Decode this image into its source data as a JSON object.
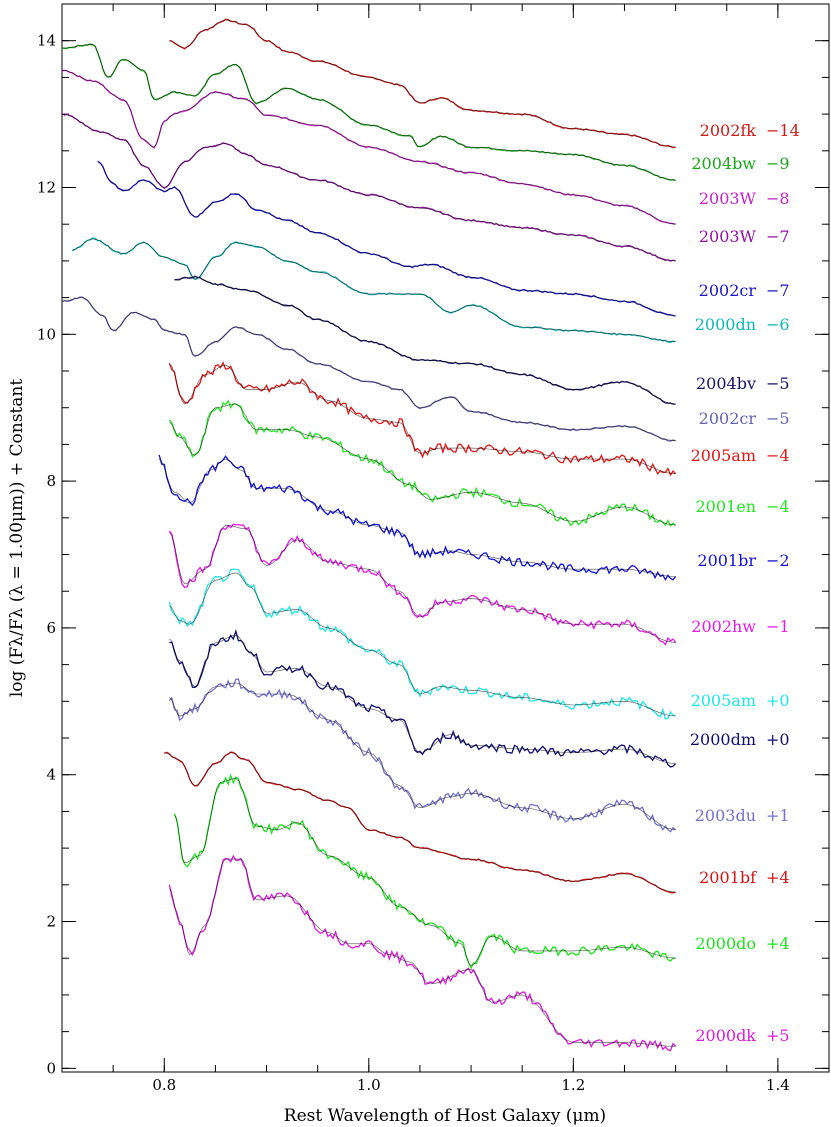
{
  "chart_data": {
    "type": "line",
    "title": "",
    "xlabel": "Rest Wavelength of Host Galaxy (μm)",
    "ylabel": "log (Fλ/Fλ (λ = 1.00μm)) + Constant",
    "xlim": [
      0.7,
      1.45
    ],
    "ylim": [
      -0.05,
      14.5
    ],
    "xticks": [
      0.8,
      1.0,
      1.2,
      1.4
    ],
    "xtick_labels": [
      "0.8",
      "1.0",
      "1.2",
      "1.4"
    ],
    "yticks": [
      0,
      2,
      4,
      6,
      8,
      10,
      12,
      14
    ],
    "ytick_labels": [
      "0",
      "2",
      "4",
      "6",
      "8",
      "10",
      "12",
      "14"
    ],
    "grid": false,
    "legend": "labels at right end of each spectrum",
    "series": [
      {
        "name": "2002fk",
        "epoch": "−14",
        "color": "#d11919",
        "x": [
          0.805,
          0.82,
          0.84,
          0.86,
          0.88,
          0.9,
          0.92,
          0.95,
          1.0,
          1.03,
          1.05,
          1.07,
          1.1,
          1.15,
          1.2,
          1.25,
          1.3
        ],
        "y": [
          14.0,
          13.9,
          14.15,
          14.28,
          14.22,
          14.0,
          13.85,
          13.72,
          13.5,
          13.4,
          13.15,
          13.22,
          13.05,
          13.0,
          12.8,
          12.72,
          12.55
        ]
      },
      {
        "name": "2004bw",
        "epoch": "−9",
        "color": "#1aa61a",
        "x": [
          0.7,
          0.73,
          0.745,
          0.76,
          0.78,
          0.79,
          0.81,
          0.83,
          0.85,
          0.87,
          0.89,
          0.92,
          0.95,
          1.0,
          1.04,
          1.05,
          1.07,
          1.1,
          1.15,
          1.2,
          1.25,
          1.3
        ],
        "y": [
          13.9,
          13.95,
          13.5,
          13.75,
          13.6,
          13.2,
          13.3,
          13.25,
          13.55,
          13.68,
          13.15,
          13.35,
          13.2,
          12.85,
          12.7,
          12.55,
          12.7,
          12.55,
          12.5,
          12.45,
          12.3,
          12.1
        ]
      },
      {
        "name": "2003W",
        "epoch": "−8",
        "color": "#c424c4",
        "x": [
          0.7,
          0.73,
          0.76,
          0.78,
          0.79,
          0.8,
          0.81,
          0.82,
          0.85,
          0.88,
          0.9,
          0.95,
          1.0,
          1.05,
          1.1,
          1.15,
          1.2,
          1.25,
          1.3
        ],
        "y": [
          13.6,
          13.45,
          13.2,
          12.65,
          12.55,
          12.9,
          13.0,
          13.05,
          13.3,
          13.2,
          12.98,
          12.85,
          12.55,
          12.35,
          12.2,
          12.05,
          11.9,
          11.75,
          11.5
        ]
      },
      {
        "name": "2003W",
        "epoch": "−7",
        "color": "#9014a0",
        "x": [
          0.7,
          0.74,
          0.76,
          0.78,
          0.8,
          0.82,
          0.84,
          0.86,
          0.88,
          0.9,
          0.95,
          1.0,
          1.05,
          1.1,
          1.15,
          1.2,
          1.25,
          1.3
        ],
        "y": [
          13.0,
          12.75,
          12.65,
          12.3,
          12.0,
          12.35,
          12.55,
          12.6,
          12.45,
          12.3,
          12.1,
          11.9,
          11.72,
          11.55,
          11.45,
          11.35,
          11.2,
          11.0
        ]
      },
      {
        "name": "2002cr",
        "epoch": "−7",
        "color": "#1818c8",
        "x": [
          0.735,
          0.75,
          0.76,
          0.78,
          0.8,
          0.81,
          0.83,
          0.85,
          0.87,
          0.89,
          0.92,
          0.95,
          1.0,
          1.04,
          1.06,
          1.1,
          1.15,
          1.2,
          1.25,
          1.3
        ],
        "y": [
          12.35,
          12.05,
          11.95,
          12.1,
          11.95,
          12.0,
          11.6,
          11.8,
          11.92,
          11.7,
          11.55,
          11.38,
          11.1,
          10.92,
          10.95,
          10.78,
          10.6,
          10.55,
          10.45,
          10.25
        ]
      },
      {
        "name": "2000dn",
        "epoch": "−6",
        "color": "#11b5b5",
        "x": [
          0.71,
          0.73,
          0.76,
          0.78,
          0.8,
          0.82,
          0.83,
          0.85,
          0.87,
          0.89,
          0.92,
          0.95,
          1.0,
          1.05,
          1.08,
          1.1,
          1.15,
          1.2,
          1.25,
          1.3
        ],
        "y": [
          11.15,
          11.3,
          11.1,
          11.25,
          11.05,
          10.95,
          10.75,
          11.05,
          11.25,
          11.2,
          11.0,
          10.85,
          10.55,
          10.55,
          10.3,
          10.4,
          10.1,
          10.05,
          10.0,
          9.9
        ]
      },
      {
        "name": "2004bv",
        "epoch": "−5",
        "color": "#141466",
        "x": [
          0.81,
          0.83,
          0.85,
          0.88,
          0.92,
          0.95,
          1.0,
          1.05,
          1.1,
          1.15,
          1.2,
          1.25,
          1.3
        ],
        "y": [
          10.75,
          10.78,
          10.68,
          10.6,
          10.4,
          10.2,
          9.9,
          9.65,
          9.6,
          9.45,
          9.25,
          9.35,
          9.05
        ]
      },
      {
        "name": "2002cr",
        "epoch": "−5",
        "color": "#6464b4",
        "x": [
          0.7,
          0.72,
          0.74,
          0.75,
          0.77,
          0.79,
          0.8,
          0.82,
          0.83,
          0.85,
          0.87,
          0.89,
          0.92,
          0.95,
          1.0,
          1.03,
          1.05,
          1.08,
          1.1,
          1.15,
          1.2,
          1.25,
          1.3
        ],
        "y": [
          10.45,
          10.5,
          10.25,
          10.05,
          10.3,
          10.2,
          10.05,
          10.0,
          9.7,
          9.9,
          10.1,
          10.0,
          9.8,
          9.6,
          9.35,
          9.25,
          9.0,
          9.15,
          8.95,
          8.8,
          8.7,
          8.75,
          8.55
        ]
      },
      {
        "name": "2005am",
        "epoch": "−4",
        "color": "#e01818",
        "x": [
          0.805,
          0.82,
          0.84,
          0.86,
          0.88,
          0.9,
          0.93,
          0.96,
          1.0,
          1.03,
          1.05,
          1.07,
          1.1,
          1.15,
          1.2,
          1.25,
          1.3
        ],
        "y": [
          9.6,
          9.05,
          9.45,
          9.58,
          9.25,
          9.25,
          9.35,
          9.1,
          8.85,
          8.8,
          8.38,
          8.45,
          8.45,
          8.4,
          8.3,
          8.3,
          8.1
        ]
      },
      {
        "name": "2001en",
        "epoch": "−4",
        "color": "#22e622",
        "x": [
          0.805,
          0.815,
          0.83,
          0.85,
          0.87,
          0.89,
          0.92,
          0.95,
          1.0,
          1.04,
          1.06,
          1.1,
          1.15,
          1.2,
          1.25,
          1.3
        ],
        "y": [
          8.8,
          8.6,
          8.35,
          9.0,
          9.05,
          8.7,
          8.7,
          8.6,
          8.3,
          7.95,
          7.75,
          7.85,
          7.7,
          7.45,
          7.65,
          7.4
        ]
      },
      {
        "name": "2001br",
        "epoch": "−2",
        "color": "#1212d8",
        "x": [
          0.795,
          0.81,
          0.825,
          0.845,
          0.86,
          0.875,
          0.89,
          0.92,
          0.96,
          1.0,
          1.03,
          1.05,
          1.08,
          1.1,
          1.15,
          1.2,
          1.25,
          1.3
        ],
        "y": [
          8.3,
          7.85,
          7.7,
          8.15,
          8.3,
          8.15,
          7.9,
          7.9,
          7.6,
          7.4,
          7.3,
          7.0,
          7.05,
          7.0,
          6.9,
          6.8,
          6.8,
          6.7
        ]
      },
      {
        "name": "2002hw",
        "epoch": "−1",
        "color": "#e619e6",
        "x": [
          0.805,
          0.82,
          0.84,
          0.86,
          0.88,
          0.9,
          0.93,
          0.96,
          1.0,
          1.03,
          1.05,
          1.07,
          1.1,
          1.15,
          1.2,
          1.25,
          1.3
        ],
        "y": [
          7.3,
          6.6,
          6.8,
          7.4,
          7.35,
          6.85,
          7.2,
          6.9,
          6.8,
          6.5,
          6.15,
          6.35,
          6.4,
          6.25,
          6.05,
          6.05,
          5.8
        ]
      },
      {
        "name": "2005am",
        "epoch": "+0",
        "color": "#1fe6e6",
        "x": [
          0.805,
          0.815,
          0.825,
          0.85,
          0.87,
          0.885,
          0.9,
          0.93,
          0.96,
          1.0,
          1.03,
          1.05,
          1.07,
          1.1,
          1.15,
          1.2,
          1.25,
          1.3
        ],
        "y": [
          6.3,
          6.1,
          6.05,
          6.65,
          6.75,
          6.55,
          6.2,
          6.25,
          6.0,
          5.7,
          5.5,
          5.1,
          5.2,
          5.15,
          5.05,
          4.95,
          5.0,
          4.8
        ]
      },
      {
        "name": "2000dm",
        "epoch": "+0",
        "color": "#0f0f70",
        "x": [
          0.805,
          0.815,
          0.83,
          0.85,
          0.87,
          0.885,
          0.9,
          0.93,
          0.96,
          1.0,
          1.03,
          1.05,
          1.08,
          1.1,
          1.15,
          1.2,
          1.25,
          1.3
        ],
        "y": [
          5.85,
          5.55,
          5.2,
          5.8,
          5.9,
          5.65,
          5.4,
          5.45,
          5.2,
          4.9,
          4.75,
          4.3,
          4.55,
          4.4,
          4.35,
          4.3,
          4.35,
          4.15
        ]
      },
      {
        "name": "2003du",
        "epoch": "+1",
        "color": "#7272cc",
        "x": [
          0.805,
          0.815,
          0.83,
          0.85,
          0.87,
          0.89,
          0.92,
          0.96,
          1.0,
          1.03,
          1.05,
          1.08,
          1.1,
          1.15,
          1.2,
          1.25,
          1.3
        ],
        "y": [
          5.05,
          4.8,
          4.9,
          5.2,
          5.25,
          5.1,
          5.1,
          4.75,
          4.3,
          3.85,
          3.55,
          3.7,
          3.75,
          3.55,
          3.4,
          3.6,
          3.25
        ]
      },
      {
        "name": "2001bf",
        "epoch": "+4",
        "color": "#d41414",
        "x": [
          0.8,
          0.815,
          0.83,
          0.85,
          0.865,
          0.88,
          0.9,
          0.93,
          0.96,
          0.98,
          1.0,
          1.03,
          1.05,
          1.1,
          1.15,
          1.2,
          1.25,
          1.3
        ],
        "y": [
          4.3,
          4.2,
          3.85,
          4.15,
          4.3,
          4.2,
          3.9,
          3.8,
          3.65,
          3.55,
          3.25,
          3.15,
          3.0,
          2.85,
          2.7,
          2.55,
          2.65,
          2.4
        ]
      },
      {
        "name": "2000do",
        "epoch": "+4",
        "color": "#1de51d",
        "x": [
          0.81,
          0.82,
          0.835,
          0.855,
          0.87,
          0.89,
          0.91,
          0.93,
          0.96,
          1.0,
          1.03,
          1.06,
          1.09,
          1.1,
          1.12,
          1.15,
          1.2,
          1.25,
          1.3
        ],
        "y": [
          3.45,
          2.8,
          2.9,
          3.9,
          3.95,
          3.3,
          3.25,
          3.35,
          2.9,
          2.6,
          2.2,
          1.95,
          1.7,
          1.4,
          1.8,
          1.6,
          1.6,
          1.65,
          1.5
        ]
      },
      {
        "name": "2000dk",
        "epoch": "+5",
        "color": "#dc1adc",
        "x": [
          0.805,
          0.815,
          0.825,
          0.84,
          0.86,
          0.875,
          0.89,
          0.92,
          0.96,
          0.98,
          1.0,
          1.02,
          1.04,
          1.06,
          1.1,
          1.12,
          1.15,
          1.2,
          1.25,
          1.3
        ],
        "y": [
          2.45,
          2.0,
          1.55,
          1.95,
          2.85,
          2.85,
          2.3,
          2.35,
          1.85,
          1.7,
          1.7,
          1.55,
          1.45,
          1.15,
          1.35,
          0.9,
          1.0,
          0.35,
          0.35,
          0.3
        ]
      }
    ]
  }
}
